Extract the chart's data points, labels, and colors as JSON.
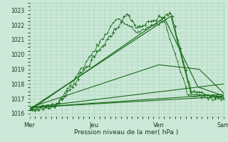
{
  "xlabel": "Pression niveau de la mer( hPa )",
  "ylim": [
    1015.8,
    1023.5
  ],
  "yticks": [
    1016,
    1017,
    1018,
    1019,
    1020,
    1021,
    1022,
    1023
  ],
  "xtick_labels": [
    "Mer",
    "Jeu",
    "Ven",
    "Sam"
  ],
  "xtick_positions": [
    0,
    48,
    96,
    144
  ],
  "bg_color": "#cce8d8",
  "grid_color": "#9ecfb0",
  "line_color": "#1a6b1a",
  "figsize": [
    3.2,
    2.0
  ],
  "dpi": 100
}
